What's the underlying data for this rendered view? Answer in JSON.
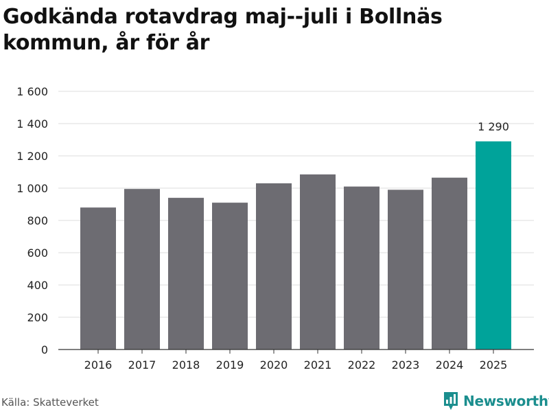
{
  "title": "Godkända rotavdrag maj--juli i Bollnäs kommun, år för år",
  "source": "Källa: Skatteverket",
  "brand": {
    "name": "Newsworthy",
    "icon": "bar-chart-pin-icon",
    "color": "#1b8e8e"
  },
  "colors": {
    "bar": "#6d6c72",
    "highlight": "#00a39a",
    "grid": "#dddddd"
  },
  "chart_data": {
    "type": "bar",
    "categories": [
      "2016",
      "2017",
      "2018",
      "2019",
      "2020",
      "2021",
      "2022",
      "2023",
      "2024",
      "2025"
    ],
    "values": [
      880,
      995,
      940,
      910,
      1030,
      1085,
      1010,
      990,
      1065,
      1290
    ],
    "highlight_index": 9,
    "data_labels": [
      {
        "index": 9,
        "text": "1 290"
      }
    ],
    "ylim": [
      0,
      1600
    ],
    "yticks": [
      0,
      200,
      400,
      600,
      800,
      1000,
      1200,
      1400,
      1600
    ],
    "ytick_labels": [
      "0",
      "200",
      "400",
      "600",
      "800",
      "1 000",
      "1 200",
      "1 400",
      "1 600"
    ],
    "grid": true,
    "xlabel": "",
    "ylabel": ""
  }
}
